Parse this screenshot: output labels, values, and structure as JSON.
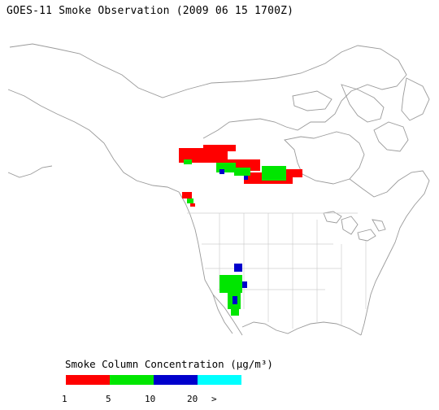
{
  "title": "GOES-11 Smoke Observation (2009 06 15  1700Z)",
  "legend": {
    "title": "Smoke Column Concentration (μg/m³)",
    "bins": [
      {
        "color": "#ff0000"
      },
      {
        "color": "#00e600"
      },
      {
        "color": "#0000cc"
      },
      {
        "color": "#00ffff"
      }
    ],
    "ticks": [
      "1",
      "5",
      "10",
      "20",
      ">"
    ]
  },
  "map": {
    "region": "North America",
    "coastline_color": "#9a9a9a",
    "state_border_color": "#cfcfcf",
    "smoke_areas": [
      {
        "region": "central Canada",
        "colors": [
          "#ff0000",
          "#00e600",
          "#0000cc"
        ]
      },
      {
        "region": "British Columbia coast",
        "colors": [
          "#ff0000",
          "#00e600"
        ]
      },
      {
        "region": "Arizona / New Mexico",
        "colors": [
          "#00e600",
          "#0000cc"
        ]
      }
    ]
  }
}
